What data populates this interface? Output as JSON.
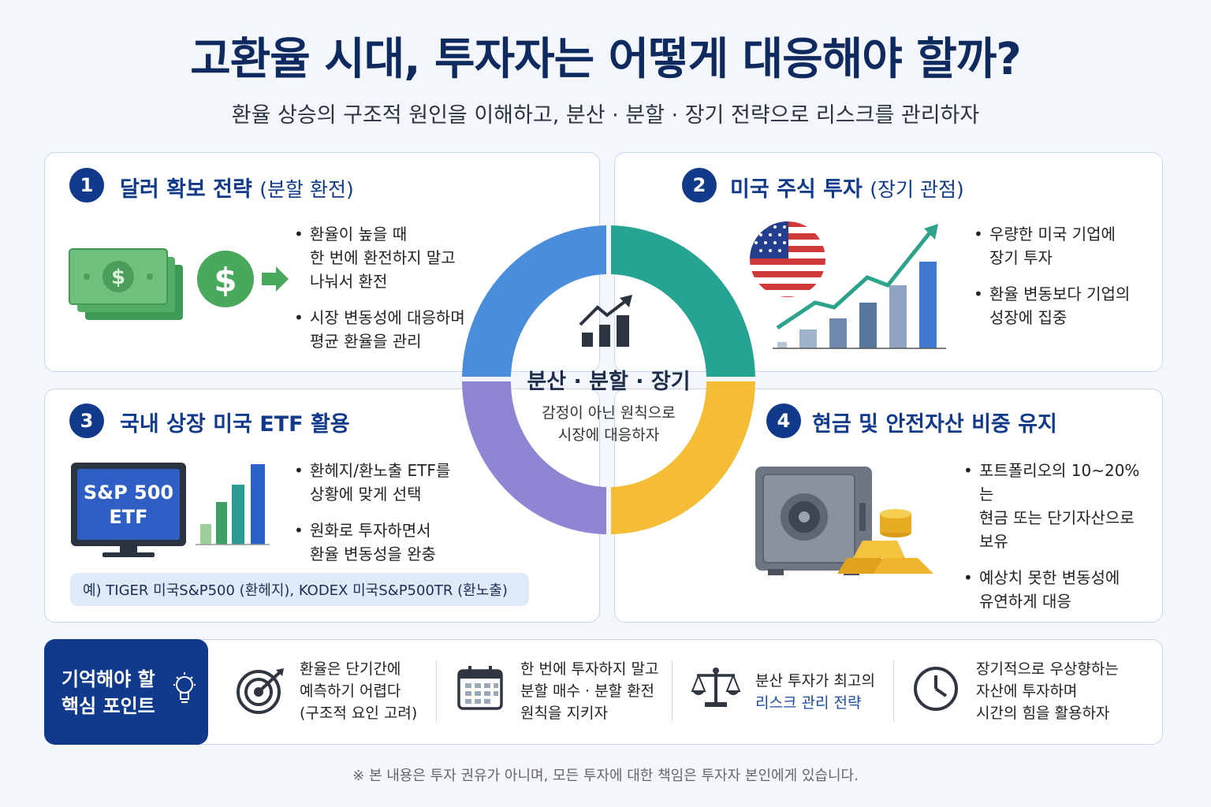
{
  "header": {
    "title": "고환율 시대, 투자자는 어떻게 대응해야 할까?",
    "subtitle": "환율 상승의 구조적 원인을 이해하고, 분산 · 분할 · 장기 전략으로 리스크를 관리하자"
  },
  "center": {
    "title": "분산 · 분할 · 장기",
    "subtitle": "감정이 아닌 원칙으로\n시장에 대응하자",
    "ring_colors": [
      "#4a8edb",
      "#26a492",
      "#f5bd36",
      "#8e86d3"
    ]
  },
  "panels": [
    {
      "number": "1",
      "title": "달러 확보 전략",
      "title_paren": "(분할 환전)",
      "bullets": [
        "환율이 높을 때\n한 번에 환전하지 말고\n나눠서 환전",
        "시장 변동성에 대응하며\n평균 환율을 관리"
      ],
      "icon": "dollar-bills-icon"
    },
    {
      "number": "2",
      "title": "미국 주식 투자",
      "title_paren": "(장기 관점)",
      "bullets": [
        "우량한 미국 기업에\n장기 투자",
        "환율 변동보다 기업의\n성장에 집중"
      ],
      "icon": "us-flag-growth-chart-icon"
    },
    {
      "number": "3",
      "title": "국내 상장 미국 ETF 활용",
      "title_paren": "",
      "bullets": [
        "환헤지/환노출 ETF를\n상황에 맞게 선택",
        "원화로 투자하면서\n환율 변동성을 완충"
      ],
      "monitor_text": "S&P 500\nETF",
      "example": "예) TIGER 미국S&P500 (환헤지), KODEX 미국S&P500TR (환노출)",
      "icon": "monitor-etf-icon"
    },
    {
      "number": "4",
      "title": "현금 및 안전자산 비중 유지",
      "title_paren": "",
      "bullets": [
        "포트폴리오의 10~20%는\n현금 또는 단기자산으로\n보유",
        "예상치 못한 변동성에\n유연하게 대응"
      ],
      "icon": "safe-gold-icon"
    }
  ],
  "key_points": {
    "label": "기억해야 할\n핵심 포인트",
    "items": [
      {
        "text": "환율은 단기간에\n예측하기 어렵다\n(구조적 요인 고려)",
        "icon": "target-icon"
      },
      {
        "text": "한 번에 투자하지 말고\n분할 매수 · 분할 환전\n원칙을 지키자",
        "icon": "calendar-icon"
      },
      {
        "text": "분산 투자가 최고의",
        "highlight": "리스크 관리 전략",
        "icon": "scale-icon"
      },
      {
        "text": "장기적으로 우상향하는\n자산에 투자하며\n시간의 힘을 활용하자",
        "icon": "clock-icon"
      }
    ]
  },
  "disclaimer": "※ 본 내용은 투자 권유가 아니며, 모든 투자에 대한 책임은 투자자 본인에게 있습니다."
}
